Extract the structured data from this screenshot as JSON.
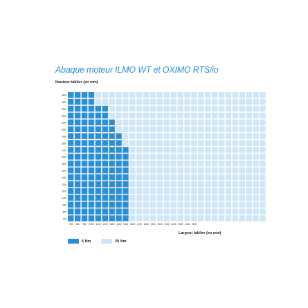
{
  "chart_data": {
    "type": "heatmap",
    "title": "Abaque moteur ILMO WT et OXIMO RTS/io",
    "ylabel": "Hauteur tablier (en mm)",
    "xlabel": "Largeur tablier (en mm)",
    "x_ticks": [
      "700",
      "800",
      "900",
      "1000",
      "1100",
      "1200",
      "1300",
      "1400",
      "1500",
      "1600",
      "1700",
      "1800",
      "1900",
      "2000",
      "2100",
      "2200",
      "2300",
      "2400",
      "2500"
    ],
    "y_ticks": [
      "2500",
      "2400",
      "2300",
      "2200",
      "2100",
      "2000",
      "1900",
      "1800",
      "1700",
      "1600",
      "1500",
      "1400",
      "1300",
      "1200",
      "1100",
      "1000",
      "900",
      "800",
      "700"
    ],
    "x_range": [
      700,
      3500
    ],
    "y_range": [
      700,
      2500
    ],
    "legend": [
      {
        "name": "6 Nm",
        "color": "#2a8fd6"
      },
      {
        "name": "20 Nm",
        "color": "#cfe6f6"
      }
    ],
    "max_width_6nm_by_height": [
      {
        "height": 2500,
        "max_width": 1000
      },
      {
        "height": 2400,
        "max_width": 1000
      },
      {
        "height": 2300,
        "max_width": 1200
      },
      {
        "height": 2200,
        "max_width": 1200
      },
      {
        "height": 2100,
        "max_width": 1300
      },
      {
        "height": 2000,
        "max_width": 1300
      },
      {
        "height": 1900,
        "max_width": 1400
      },
      {
        "height": 1800,
        "max_width": 1400
      },
      {
        "height": 1700,
        "max_width": 1500
      },
      {
        "height": 1600,
        "max_width": 1500
      },
      {
        "height": 1500,
        "max_width": 1500
      },
      {
        "height": 1400,
        "max_width": 1500
      },
      {
        "height": 1300,
        "max_width": 1500
      },
      {
        "height": 1200,
        "max_width": 1500
      },
      {
        "height": 1100,
        "max_width": 1500
      },
      {
        "height": 1000,
        "max_width": 1500
      },
      {
        "height": 900,
        "max_width": 1500
      },
      {
        "height": 800,
        "max_width": 1500
      },
      {
        "height": 700,
        "max_width": 1500
      }
    ],
    "grid": true
  }
}
